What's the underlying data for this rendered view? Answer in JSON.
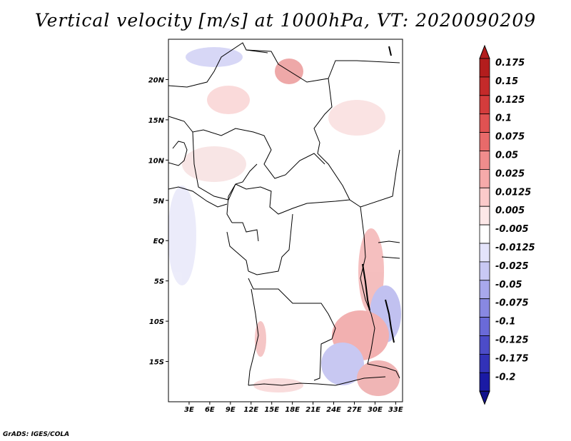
{
  "title": "Vertical velocity [m/s] at 1000hPa, VT: 2020090209",
  "credit": "GrADS: IGES/COLA",
  "map": {
    "lon_range": [
      0,
      34
    ],
    "lat_range": [
      -20,
      25
    ],
    "lat_ticks": [
      "20N",
      "15N",
      "10N",
      "5N",
      "EQ",
      "5S",
      "10S",
      "15S"
    ],
    "lat_values": [
      20,
      15,
      10,
      5,
      0,
      -5,
      -10,
      -15
    ],
    "lon_ticks": [
      "3E",
      "6E",
      "9E",
      "12E",
      "15E",
      "18E",
      "21E",
      "24E",
      "27E",
      "30E",
      "33E"
    ],
    "lon_values": [
      3,
      6,
      9,
      12,
      15,
      18,
      21,
      24,
      27,
      30,
      33
    ]
  },
  "colorbar": {
    "labels": [
      "0.175",
      "0.15",
      "0.125",
      "0.1",
      "0.075",
      "0.05",
      "0.025",
      "0.0125",
      "0.005",
      "-0.005",
      "-0.0125",
      "-0.025",
      "-0.05",
      "-0.075",
      "-0.1",
      "-0.125",
      "-0.175",
      "-0.2"
    ],
    "colors": [
      "#b31d1d",
      "#c42a2a",
      "#d43c3c",
      "#e05252",
      "#e86a6a",
      "#f08c8c",
      "#f6aaaa",
      "#fbcaca",
      "#fde8e8",
      "#ffffff",
      "#e4e4fb",
      "#c8c8f4",
      "#a8a8ec",
      "#8888e2",
      "#6a6ad8",
      "#4c4cc8",
      "#3232b8",
      "#1a1aa4"
    ]
  }
}
